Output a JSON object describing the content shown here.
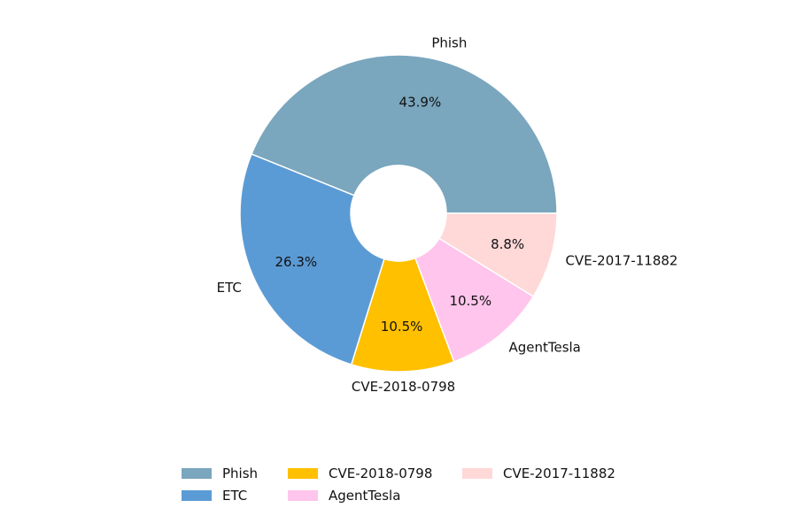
{
  "chart_data": {
    "type": "pie",
    "donut": true,
    "legend_position": "bottom-center",
    "slices": [
      {
        "label": "Phish",
        "value": 43.9,
        "pct_text": "43.9%",
        "color": "#7aa6be"
      },
      {
        "label": "ETC",
        "value": 26.3,
        "pct_text": "26.3%",
        "color": "#5b9bd5"
      },
      {
        "label": "CVE-2018-0798",
        "value": 10.5,
        "pct_text": "10.5%",
        "color": "#ffc000"
      },
      {
        "label": "AgentTesla",
        "value": 10.5,
        "pct_text": "10.5%",
        "color": "#ffc5ec"
      },
      {
        "label": "CVE-2017-11882",
        "value": 8.8,
        "pct_text": "8.8%",
        "color": "#ffd8d8"
      }
    ]
  },
  "legend": {
    "items": [
      {
        "label": "Phish",
        "color": "#7aa6be"
      },
      {
        "label": "ETC",
        "color": "#5b9bd5"
      },
      {
        "label": "CVE-2018-0798",
        "color": "#ffc000"
      },
      {
        "label": "AgentTesla",
        "color": "#ffc5ec"
      },
      {
        "label": "CVE-2017-11882",
        "color": "#ffd8d8"
      }
    ]
  }
}
